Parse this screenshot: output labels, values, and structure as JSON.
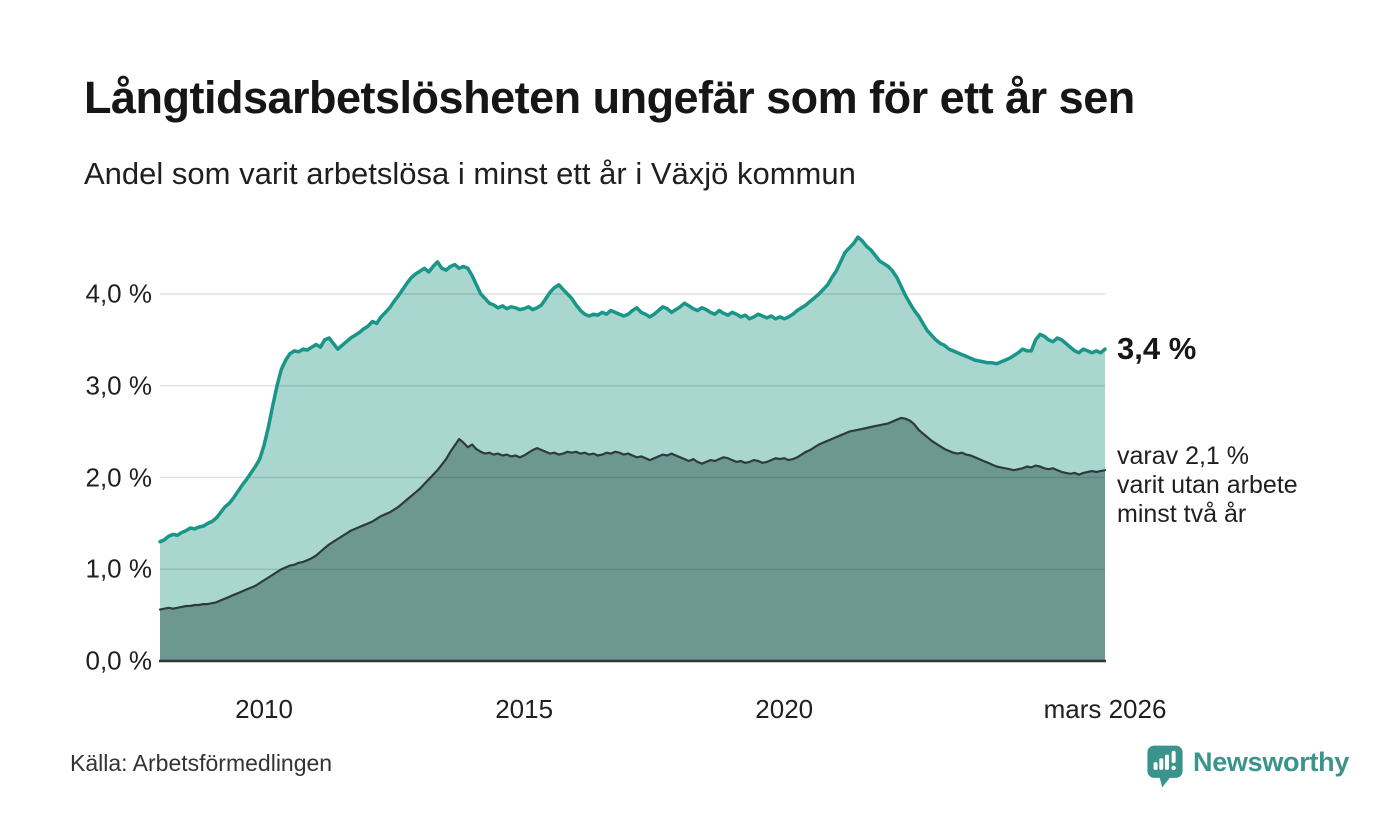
{
  "header": {
    "title": "Långtidsarbetslösheten ungefär som för ett år sen",
    "subtitle": "Andel som varit arbetslösa i minst ett år i Växjö kommun"
  },
  "chart_data": {
    "type": "area",
    "x_start": "2008-01",
    "x_end": "2026-03",
    "frequency": "monthly",
    "ylim": [
      0,
      4.7
    ],
    "grid": "horizontal",
    "y_ticks": [
      {
        "value": 4,
        "label": "4,0 %"
      },
      {
        "value": 3,
        "label": "3,0 %"
      },
      {
        "value": 2,
        "label": "2,0 %"
      },
      {
        "value": 1,
        "label": "1,0 %"
      },
      {
        "value": 0,
        "label": "0,0 %"
      }
    ],
    "x_ticks": [
      {
        "index": 24,
        "label": "2010"
      },
      {
        "index": 84,
        "label": "2015"
      },
      {
        "index": 144,
        "label": "2020"
      },
      {
        "index": 218,
        "label": "mars 2026"
      }
    ],
    "series": [
      {
        "name": "Andel som varit arbetslösa i minst ett år",
        "line_color": "#1a9689",
        "fill_color": "#a9d6ce",
        "end_value": 3.4,
        "values": [
          1.3,
          1.32,
          1.36,
          1.38,
          1.37,
          1.4,
          1.42,
          1.45,
          1.44,
          1.46,
          1.47,
          1.5,
          1.52,
          1.56,
          1.62,
          1.68,
          1.72,
          1.78,
          1.85,
          1.92,
          1.98,
          2.05,
          2.12,
          2.2,
          2.35,
          2.55,
          2.78,
          3.0,
          3.18,
          3.28,
          3.35,
          3.38,
          3.37,
          3.4,
          3.39,
          3.42,
          3.45,
          3.42,
          3.5,
          3.52,
          3.46,
          3.4,
          3.44,
          3.48,
          3.52,
          3.55,
          3.58,
          3.62,
          3.65,
          3.7,
          3.68,
          3.75,
          3.8,
          3.85,
          3.92,
          3.98,
          4.05,
          4.12,
          4.18,
          4.22,
          4.25,
          4.28,
          4.24,
          4.3,
          4.35,
          4.28,
          4.26,
          4.3,
          4.32,
          4.28,
          4.3,
          4.28,
          4.2,
          4.1,
          4.0,
          3.95,
          3.9,
          3.88,
          3.85,
          3.87,
          3.84,
          3.86,
          3.85,
          3.83,
          3.84,
          3.86,
          3.83,
          3.85,
          3.88,
          3.95,
          4.02,
          4.07,
          4.1,
          4.05,
          4.0,
          3.95,
          3.88,
          3.82,
          3.78,
          3.76,
          3.78,
          3.77,
          3.8,
          3.78,
          3.82,
          3.8,
          3.78,
          3.76,
          3.78,
          3.82,
          3.85,
          3.8,
          3.78,
          3.75,
          3.78,
          3.82,
          3.86,
          3.84,
          3.8,
          3.83,
          3.86,
          3.9,
          3.87,
          3.84,
          3.82,
          3.85,
          3.83,
          3.8,
          3.78,
          3.82,
          3.79,
          3.77,
          3.8,
          3.78,
          3.75,
          3.77,
          3.73,
          3.75,
          3.78,
          3.76,
          3.74,
          3.76,
          3.73,
          3.75,
          3.73,
          3.75,
          3.78,
          3.82,
          3.85,
          3.88,
          3.92,
          3.96,
          4.0,
          4.05,
          4.1,
          4.18,
          4.25,
          4.35,
          4.45,
          4.5,
          4.55,
          4.62,
          4.58,
          4.52,
          4.48,
          4.42,
          4.36,
          4.33,
          4.3,
          4.25,
          4.18,
          4.08,
          3.98,
          3.9,
          3.82,
          3.76,
          3.68,
          3.6,
          3.55,
          3.5,
          3.46,
          3.44,
          3.4,
          3.38,
          3.36,
          3.34,
          3.32,
          3.3,
          3.28,
          3.27,
          3.26,
          3.25,
          3.25,
          3.24,
          3.26,
          3.28,
          3.3,
          3.33,
          3.36,
          3.4,
          3.38,
          3.38,
          3.5,
          3.56,
          3.54,
          3.5,
          3.48,
          3.52,
          3.5,
          3.46,
          3.42,
          3.38,
          3.36,
          3.4,
          3.38,
          3.36,
          3.38,
          3.36,
          3.4
        ]
      },
      {
        "name": "varav utan arbete minst två år",
        "line_color": "#2d3c3a",
        "fill_color": "#6d9892",
        "end_value": 2.1,
        "values": [
          0.56,
          0.57,
          0.58,
          0.57,
          0.58,
          0.59,
          0.6,
          0.6,
          0.61,
          0.61,
          0.62,
          0.62,
          0.63,
          0.64,
          0.66,
          0.68,
          0.7,
          0.72,
          0.74,
          0.76,
          0.78,
          0.8,
          0.82,
          0.85,
          0.88,
          0.91,
          0.94,
          0.97,
          1.0,
          1.02,
          1.04,
          1.05,
          1.07,
          1.08,
          1.1,
          1.12,
          1.15,
          1.19,
          1.23,
          1.27,
          1.3,
          1.33,
          1.36,
          1.39,
          1.42,
          1.44,
          1.46,
          1.48,
          1.5,
          1.52,
          1.55,
          1.58,
          1.6,
          1.62,
          1.65,
          1.68,
          1.72,
          1.76,
          1.8,
          1.84,
          1.88,
          1.93,
          1.98,
          2.03,
          2.08,
          2.14,
          2.2,
          2.28,
          2.35,
          2.42,
          2.38,
          2.33,
          2.36,
          2.31,
          2.28,
          2.26,
          2.27,
          2.25,
          2.26,
          2.24,
          2.25,
          2.23,
          2.24,
          2.22,
          2.24,
          2.27,
          2.3,
          2.32,
          2.3,
          2.28,
          2.26,
          2.27,
          2.25,
          2.26,
          2.28,
          2.27,
          2.28,
          2.26,
          2.27,
          2.25,
          2.26,
          2.24,
          2.25,
          2.27,
          2.26,
          2.28,
          2.27,
          2.25,
          2.26,
          2.24,
          2.22,
          2.23,
          2.21,
          2.19,
          2.21,
          2.23,
          2.25,
          2.24,
          2.26,
          2.24,
          2.22,
          2.2,
          2.18,
          2.2,
          2.17,
          2.15,
          2.17,
          2.19,
          2.18,
          2.2,
          2.22,
          2.21,
          2.19,
          2.17,
          2.18,
          2.16,
          2.17,
          2.19,
          2.18,
          2.16,
          2.17,
          2.19,
          2.21,
          2.2,
          2.21,
          2.19,
          2.2,
          2.22,
          2.25,
          2.28,
          2.3,
          2.33,
          2.36,
          2.38,
          2.4,
          2.42,
          2.44,
          2.46,
          2.48,
          2.5,
          2.51,
          2.52,
          2.53,
          2.54,
          2.55,
          2.56,
          2.57,
          2.58,
          2.59,
          2.61,
          2.63,
          2.65,
          2.64,
          2.62,
          2.58,
          2.52,
          2.48,
          2.44,
          2.4,
          2.37,
          2.34,
          2.31,
          2.29,
          2.27,
          2.26,
          2.27,
          2.25,
          2.24,
          2.22,
          2.2,
          2.18,
          2.16,
          2.14,
          2.12,
          2.11,
          2.1,
          2.09,
          2.08,
          2.09,
          2.1,
          2.12,
          2.11,
          2.13,
          2.12,
          2.1,
          2.09,
          2.1,
          2.08,
          2.06,
          2.05,
          2.04,
          2.05,
          2.03,
          2.05,
          2.06,
          2.07,
          2.06,
          2.07,
          2.08
        ]
      }
    ],
    "annotations": {
      "end_value_label": "3,4 %",
      "secondary_lines": [
        "varav 2,1 %",
        "varit utan arbete",
        "minst två år"
      ]
    }
  },
  "footer": {
    "source": "Källa: Arbetsförmedlingen",
    "logo_text": "Newsworthy"
  },
  "colors": {
    "accent_teal": "#1a9689",
    "fill_light": "#a9d6ce",
    "fill_dark": "#6d9892",
    "line_dark": "#2d3c3a",
    "logo_teal": "#3a948b",
    "gridline": "rgba(0,0,0,0.12)",
    "axis": "#333333"
  }
}
